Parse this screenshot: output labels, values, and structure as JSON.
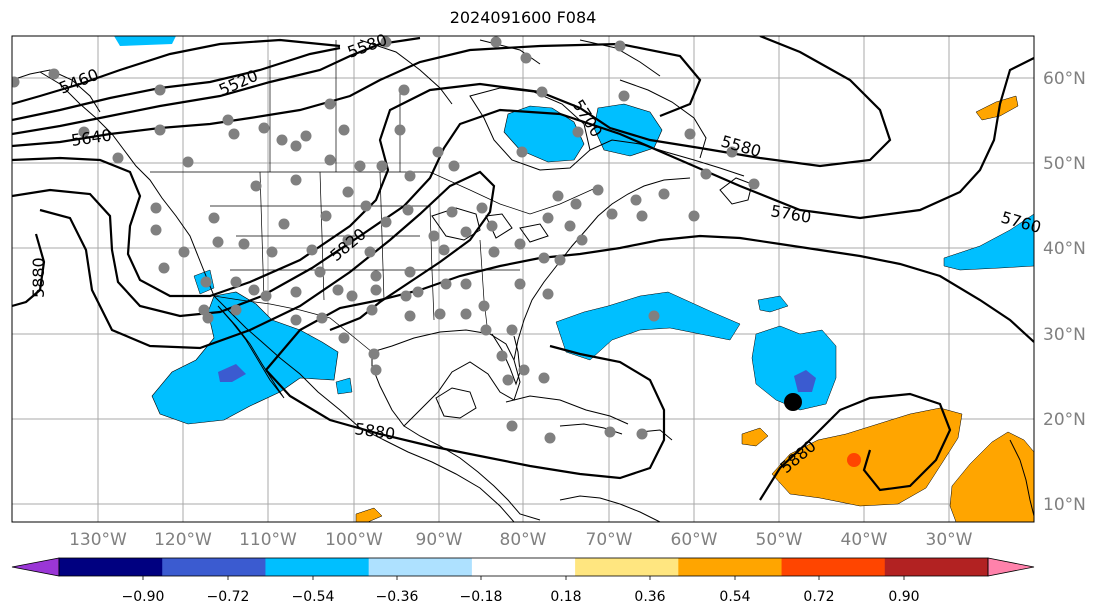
{
  "title": "2024091600 F084",
  "map": {
    "lon_labels": [
      "130°W",
      "120°W",
      "110°W",
      "100°W",
      "90°W",
      "80°W",
      "70°W",
      "60°W",
      "50°W",
      "40°W",
      "30°W"
    ],
    "lat_labels": [
      "60°N",
      "50°N",
      "40°N",
      "30°N",
      "20°N",
      "10°N"
    ],
    "contour_labels": [
      "5460",
      "5520",
      "5580",
      "5640",
      "5700",
      "5580",
      "5760",
      "5760",
      "5820",
      "5880",
      "5880",
      "5880"
    ],
    "gridline_color": "#a9a9a9"
  },
  "colorbar": {
    "ticks": [
      "−0.90",
      "−0.72",
      "−0.54",
      "−0.36",
      "−0.18",
      "0.18",
      "0.36",
      "0.54",
      "0.72",
      "0.90"
    ],
    "colors": [
      "#9a36d6",
      "#000080",
      "#3b5bd0",
      "#00bfff",
      "#aee1ff",
      "#ffffff",
      "#ffe680",
      "#ffa500",
      "#ff4500",
      "#b22222",
      "#ff82ab"
    ]
  }
}
